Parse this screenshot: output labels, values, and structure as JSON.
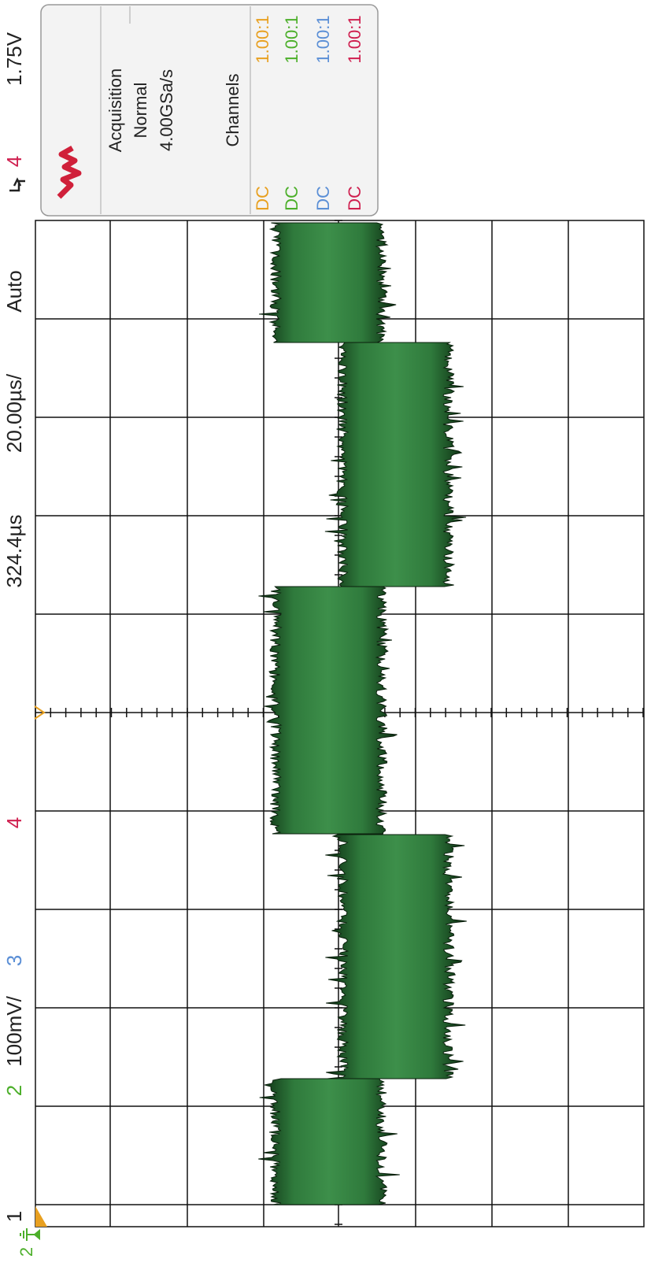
{
  "status_bar": {
    "ch1": "1",
    "ch2": "2",
    "volts_per_div": "100mV/",
    "ch3": "3",
    "ch4": "4",
    "delay": "324.4µs",
    "time_per_div": "20.00µs/",
    "trigger_mode": "Auto",
    "trigger_source": "4",
    "trigger_level": "1.75V"
  },
  "info_panel": {
    "acquisition": {
      "title": "Acquisition",
      "mode": "Normal",
      "sample_rate": "4.00GSa/s"
    },
    "channels": {
      "title": "Channels",
      "rows": [
        [
          "DC",
          "1.00:1"
        ],
        [
          "DC",
          "1.00:1"
        ],
        [
          "DC",
          "1.00:1"
        ],
        [
          "DC",
          "1.00:1"
        ]
      ]
    }
  },
  "ground_marker": {
    "label": "2"
  }
}
